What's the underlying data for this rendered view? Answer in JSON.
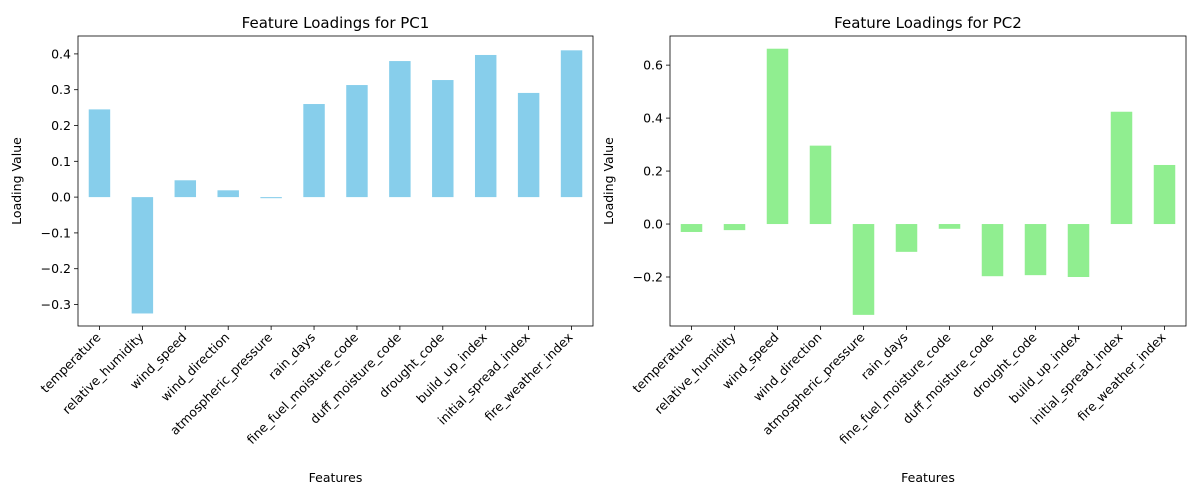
{
  "chart_data": [
    {
      "type": "bar",
      "title": "Feature Loadings for PC1",
      "xlabel": "Features",
      "ylabel": "Loading Value",
      "ylim": [
        -0.36,
        0.45
      ],
      "yticks": [
        -0.3,
        -0.2,
        -0.1,
        0.0,
        0.1,
        0.2,
        0.3,
        0.4
      ],
      "ytick_labels": [
        "−0.3",
        "−0.2",
        "−0.1",
        "0.0",
        "0.1",
        "0.2",
        "0.3",
        "0.4"
      ],
      "bar_color": "#87ceeb",
      "categories": [
        "temperature",
        "relative_humidity",
        "wind_speed",
        "wind_direction",
        "atmospheric_pressure",
        "rain_days",
        "fine_fuel_moisture_code",
        "duff_moisture_code",
        "drought_code",
        "build_up_index",
        "initial_spread_index",
        "fire_weather_index"
      ],
      "values": [
        0.245,
        -0.325,
        0.047,
        0.019,
        -0.003,
        0.26,
        0.313,
        0.38,
        0.327,
        0.397,
        0.291,
        0.41
      ]
    },
    {
      "type": "bar",
      "title": "Feature Loadings for PC2",
      "xlabel": "Features",
      "ylabel": "Loading Value",
      "ylim": [
        -0.385,
        0.71
      ],
      "yticks": [
        -0.2,
        0.0,
        0.2,
        0.4,
        0.6
      ],
      "ytick_labels": [
        "−0.2",
        "0.0",
        "0.2",
        "0.4",
        "0.6"
      ],
      "bar_color": "#90ee90",
      "categories": [
        "temperature",
        "relative_humidity",
        "wind_speed",
        "wind_direction",
        "atmospheric_pressure",
        "rain_days",
        "fine_fuel_moisture_code",
        "duff_moisture_code",
        "drought_code",
        "build_up_index",
        "initial_spread_index",
        "fire_weather_index"
      ],
      "values": [
        -0.03,
        -0.023,
        0.662,
        0.296,
        -0.343,
        -0.105,
        -0.018,
        -0.197,
        -0.193,
        -0.2,
        0.424,
        0.223
      ]
    }
  ]
}
